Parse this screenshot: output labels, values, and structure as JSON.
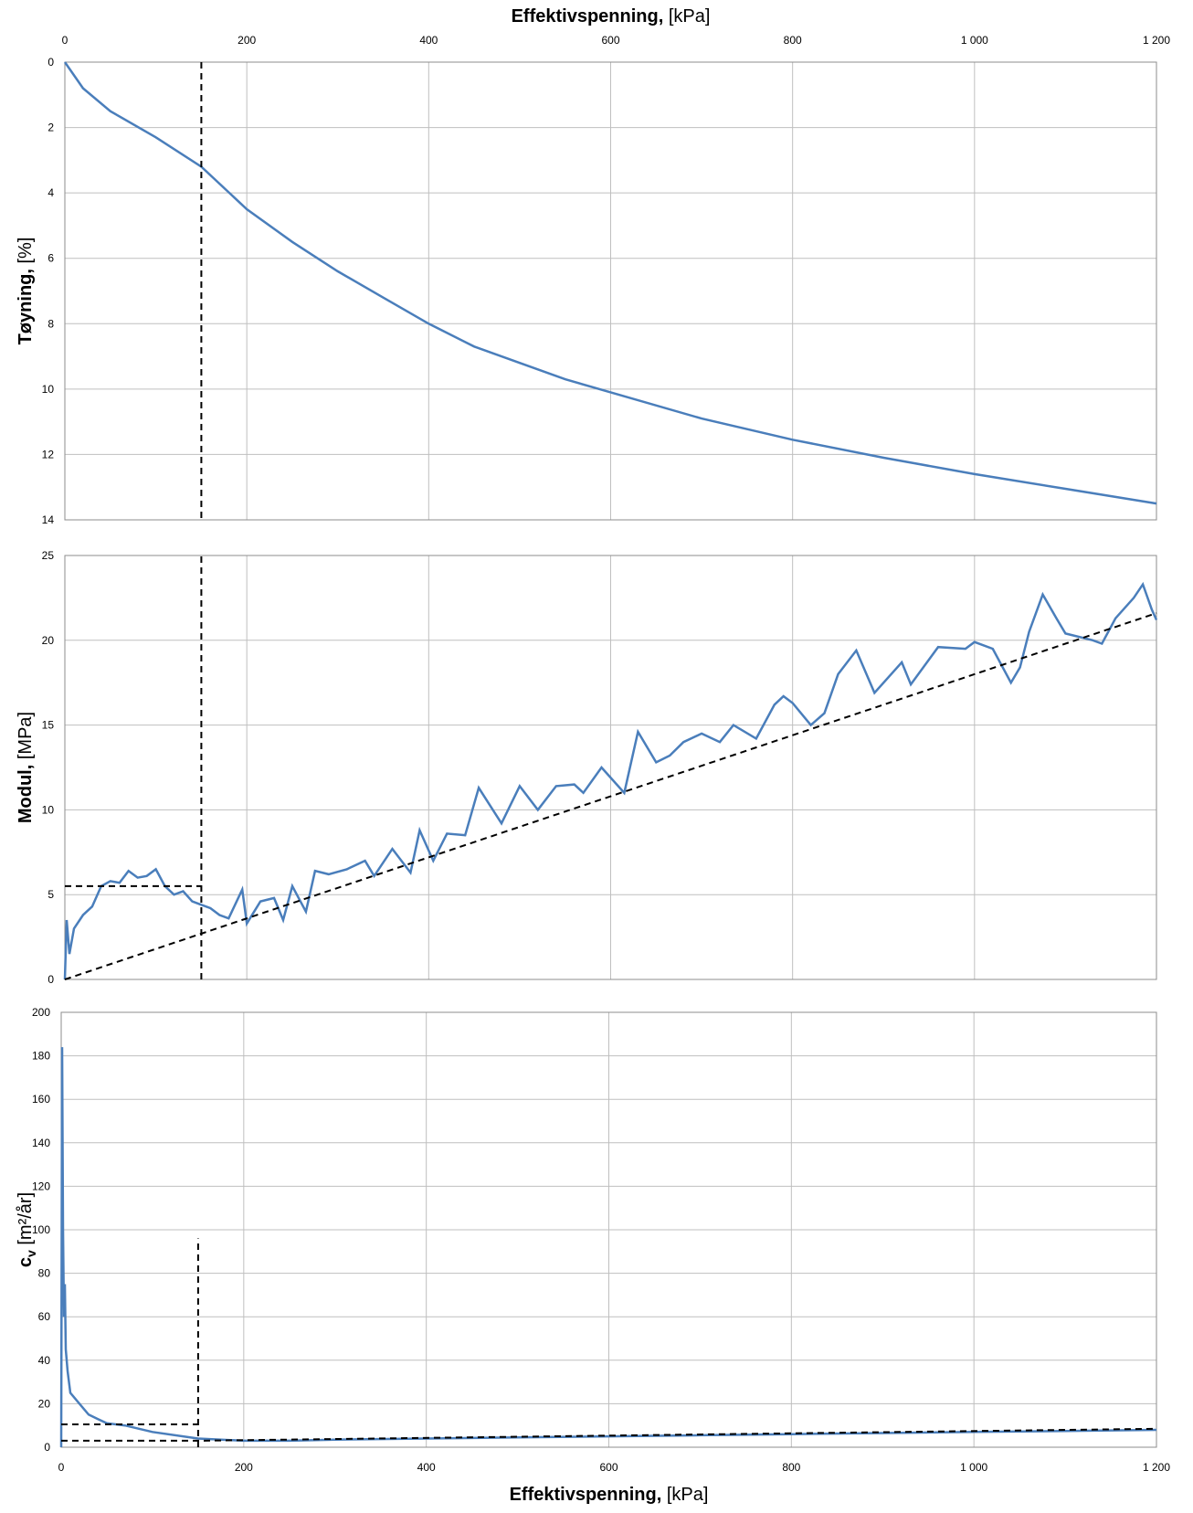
{
  "chart_data": [
    {
      "type": "line",
      "xaxis": "top",
      "xlabel": {
        "main": "Effektivspenning,",
        "unit": "[kPa]"
      },
      "ylabel": {
        "main": "Tøyning,",
        "unit": "[%]"
      },
      "xlim": [
        0,
        1200
      ],
      "xticks": [
        0,
        200,
        400,
        600,
        800,
        {
          "value": 1000,
          "label": "1 000"
        },
        {
          "value": 1200,
          "label": "1 200"
        }
      ],
      "ylim": [
        0,
        14
      ],
      "y_inverted": true,
      "yticks": [
        0,
        2,
        4,
        6,
        8,
        10,
        12,
        14
      ],
      "grid": true,
      "series": [
        {
          "color": "#4a7ebb",
          "x": [
            0,
            20,
            50,
            100,
            150,
            200,
            250,
            300,
            350,
            400,
            450,
            500,
            550,
            600,
            700,
            800,
            900,
            1000,
            1100,
            1200
          ],
          "values": [
            0,
            0.8,
            1.5,
            2.3,
            3.2,
            4.5,
            5.5,
            6.4,
            7.2,
            8.0,
            8.7,
            9.2,
            9.7,
            10.1,
            10.9,
            11.55,
            12.1,
            12.6,
            13.05,
            13.5
          ]
        },
        {
          "color": "#000000",
          "dashed": true,
          "x": [
            150,
            150
          ],
          "values": [
            0,
            14
          ]
        }
      ]
    },
    {
      "type": "line",
      "ylabel": {
        "main": "Modul,",
        "unit": "[MPa]"
      },
      "xlim": [
        0,
        1200
      ],
      "xticks": [
        0,
        200,
        400,
        600,
        800,
        1000,
        1200
      ],
      "ylim": [
        0,
        25
      ],
      "yticks": [
        0,
        5,
        10,
        15,
        20,
        25
      ],
      "grid": true,
      "series": [
        {
          "color": "#4a7ebb",
          "x": [
            0,
            2,
            5,
            10,
            20,
            30,
            40,
            50,
            60,
            70,
            80,
            90,
            100,
            110,
            120,
            130,
            140,
            150,
            160,
            170,
            180,
            195,
            200,
            215,
            230,
            240,
            250,
            265,
            275,
            290,
            310,
            330,
            340,
            360,
            380,
            390,
            405,
            420,
            440,
            455,
            480,
            500,
            520,
            540,
            560,
            570,
            590,
            615,
            630,
            650,
            665,
            680,
            700,
            720,
            735,
            760,
            780,
            790,
            800,
            820,
            835,
            850,
            870,
            890,
            920,
            930,
            960,
            990,
            1000,
            1020,
            1040,
            1050,
            1060,
            1075,
            1090,
            1100,
            1130,
            1140,
            1155,
            1175,
            1185,
            1195,
            1200
          ],
          "values": [
            0,
            3.5,
            1.5,
            3,
            3.8,
            4.3,
            5.5,
            5.8,
            5.7,
            6.4,
            6.0,
            6.1,
            6.5,
            5.5,
            5.0,
            5.2,
            4.6,
            4.4,
            4.2,
            3.8,
            3.6,
            5.3,
            3.3,
            4.6,
            4.8,
            3.5,
            5.5,
            4.0,
            6.4,
            6.2,
            6.5,
            7.0,
            6.1,
            7.7,
            6.3,
            8.8,
            7.0,
            8.6,
            8.5,
            11.3,
            9.2,
            11.4,
            10.0,
            11.4,
            11.5,
            11.0,
            12.5,
            11.0,
            14.6,
            12.8,
            13.2,
            14.0,
            14.5,
            14.0,
            15.0,
            14.2,
            16.2,
            16.7,
            16.3,
            15.0,
            15.7,
            18.0,
            19.4,
            16.9,
            18.7,
            17.4,
            19.6,
            19.5,
            19.9,
            19.5,
            17.5,
            18.4,
            20.5,
            22.7,
            21.3,
            20.4,
            20.0,
            19.8,
            21.3,
            22.5,
            23.3,
            21.8,
            21.2
          ]
        },
        {
          "color": "#000000",
          "dashed": true,
          "x": [
            0,
            150
          ],
          "values": [
            5.5,
            5.5
          ]
        },
        {
          "color": "#000000",
          "dashed": true,
          "x": [
            150,
            150
          ],
          "values": [
            0,
            25
          ]
        },
        {
          "color": "#000000",
          "dashed": true,
          "x": [
            0,
            1200
          ],
          "values": [
            0,
            21.6
          ]
        }
      ]
    },
    {
      "type": "line",
      "xaxis": "bottom",
      "xlabel": {
        "main": "Effektivspenning,",
        "unit": "[kPa]"
      },
      "ylabel": {
        "main": "c",
        "sub": "v",
        "unit": "[m²/år]"
      },
      "xlim": [
        0,
        1200
      ],
      "xticks": [
        0,
        200,
        400,
        600,
        800,
        {
          "value": 1000,
          "label": "1 000"
        },
        {
          "value": 1200,
          "label": "1 200"
        }
      ],
      "ylim": [
        0,
        200
      ],
      "yticks": [
        0,
        20,
        40,
        60,
        80,
        100,
        120,
        140,
        160,
        180,
        200
      ],
      "grid": true,
      "series": [
        {
          "color": "#4a7ebb",
          "x": [
            0,
            1,
            2,
            3,
            4,
            5,
            7,
            10,
            20,
            30,
            40,
            50,
            70,
            100,
            150,
            200,
            250,
            300,
            400,
            500,
            600,
            700,
            800,
            900,
            1000,
            1100,
            1200
          ],
          "values": [
            0,
            184,
            100,
            60,
            75,
            45,
            35,
            25,
            20,
            15,
            13,
            11,
            10,
            7,
            4,
            3,
            3,
            3.5,
            4,
            4.5,
            5,
            5.5,
            6,
            6.5,
            7,
            7.5,
            8
          ]
        },
        {
          "color": "#000000",
          "dashed": true,
          "x": [
            150,
            150
          ],
          "values": [
            0,
            96
          ]
        },
        {
          "color": "#000000",
          "dashed": true,
          "x": [
            0,
            150
          ],
          "values": [
            10.5,
            10.5
          ]
        },
        {
          "color": "#000000",
          "dashed": true,
          "x": [
            0,
            150,
            1200
          ],
          "values": [
            3,
            3,
            8.5
          ]
        }
      ]
    }
  ]
}
